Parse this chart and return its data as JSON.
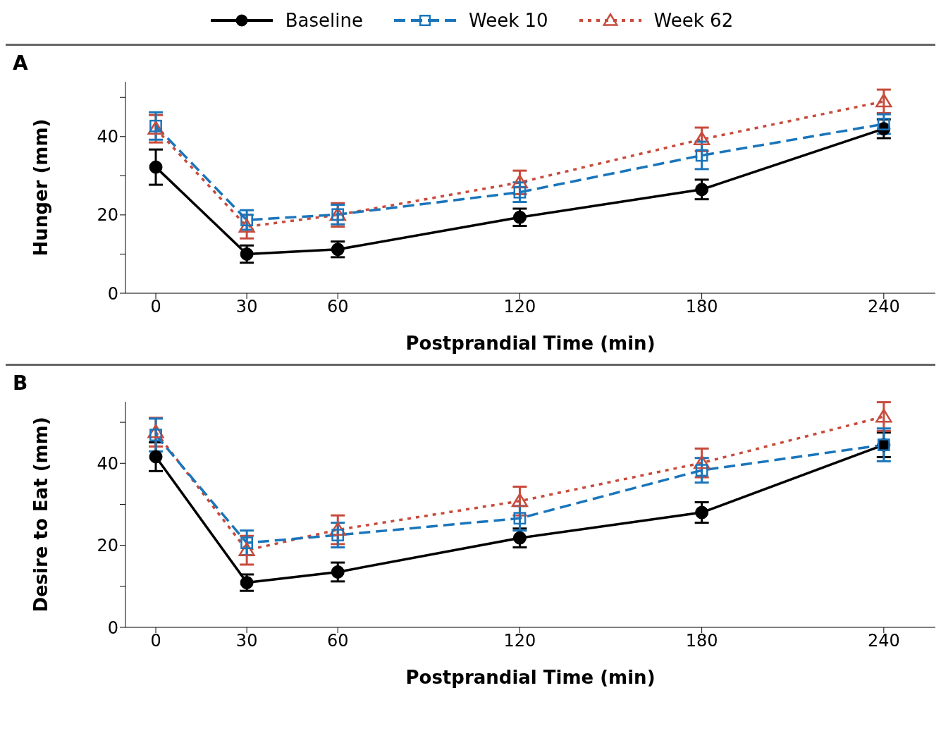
{
  "chart_data": [
    {
      "type": "line",
      "title": "A",
      "xlabel": "Postprandial Time (min)",
      "ylabel": "Hunger (mm)",
      "x": [
        0,
        30,
        60,
        120,
        180,
        240
      ],
      "xlim": [
        -10,
        257
      ],
      "xticks": [
        0,
        30,
        60,
        120,
        180,
        240
      ],
      "ylim": [
        0,
        54
      ],
      "yticks": [
        0,
        {
          "value": 10,
          "label": null
        },
        20,
        {
          "value": 30,
          "label": null
        },
        40,
        {
          "value": 50,
          "label": null
        }
      ],
      "legend": "top",
      "series": [
        {
          "name": "Baseline",
          "color": "#000000",
          "marker": "circle",
          "line_style": "solid",
          "values": [
            32.2,
            10,
            11.2,
            19.4,
            26.5,
            42
          ],
          "errors": [
            4.5,
            2.2,
            2,
            2.2,
            2.5,
            2.4
          ]
        },
        {
          "name": "Week 10",
          "color": "#1a75bb",
          "marker": "square",
          "line_style": "dashed",
          "values": [
            42.7,
            18.7,
            20.1,
            25.8,
            35.2,
            43.2
          ],
          "errors": [
            3.5,
            2.5,
            2.5,
            2.5,
            3.5,
            2.5
          ]
        },
        {
          "name": "Week 62",
          "color": "#c84b3c",
          "marker": "triangle",
          "line_style": "dotted",
          "values": [
            42,
            17,
            20,
            28.3,
            39.3,
            49
          ],
          "errors": [
            3.5,
            3,
            3,
            3,
            3,
            3
          ]
        }
      ]
    },
    {
      "type": "line",
      "title": "B",
      "xlabel": "Postprandial Time (min)",
      "ylabel": "Desire to Eat (mm)",
      "x": [
        0,
        30,
        60,
        120,
        180,
        240
      ],
      "xlim": [
        -10,
        257
      ],
      "xticks": [
        0,
        30,
        60,
        120,
        180,
        240
      ],
      "ylim": [
        0,
        55
      ],
      "yticks": [
        0,
        {
          "value": 10,
          "label": null
        },
        20,
        {
          "value": 30,
          "label": null
        },
        40,
        {
          "value": 50,
          "label": null
        }
      ],
      "series": [
        {
          "color": "#000000",
          "marker": "circle",
          "line_style": "solid",
          "values": [
            41.6,
            10.9,
            13.5,
            21.8,
            28,
            44.5
          ],
          "errors": [
            3.5,
            2,
            2.3,
            2.3,
            2.5,
            3
          ]
        },
        {
          "color": "#1a75bb",
          "marker": "square",
          "line_style": "dashed",
          "values": [
            46.9,
            20.6,
            22.5,
            26.6,
            38.3,
            44.5
          ],
          "errors": [
            4,
            3,
            3,
            3,
            3,
            4
          ]
        },
        {
          "color": "#c84b3c",
          "marker": "triangle",
          "line_style": "dotted",
          "values": [
            47.6,
            18.8,
            23.8,
            30.8,
            40.1,
            51.4
          ],
          "errors": [
            3.5,
            3.5,
            3.5,
            3.5,
            3.5,
            3.5
          ]
        }
      ]
    }
  ]
}
